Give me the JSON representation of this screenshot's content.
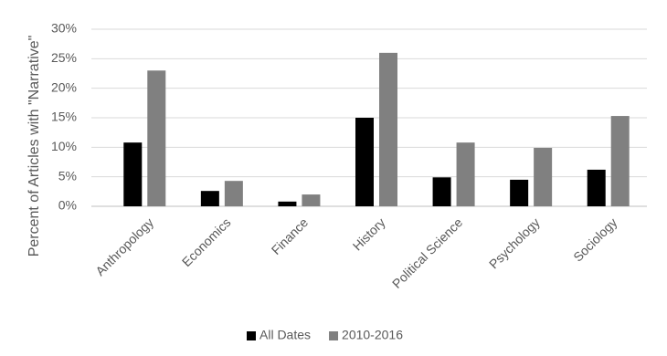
{
  "chart_data": {
    "type": "bar",
    "y_label": "Percent of Articles with \"Narrative\"",
    "categories": [
      "Anthropology",
      "Economics",
      "Finance",
      "History",
      "Political Science",
      "Psychology",
      "Sociology"
    ],
    "series": [
      {
        "name": "All Dates",
        "color": "#000000",
        "values": [
          10.8,
          2.6,
          0.8,
          15.0,
          4.9,
          4.5,
          6.2
        ]
      },
      {
        "name": "2010-2016",
        "color": "#808080",
        "values": [
          23.0,
          4.3,
          2.0,
          26.0,
          10.8,
          9.9,
          15.3
        ]
      }
    ],
    "ylim": [
      0,
      30
    ],
    "yticks": [
      {
        "value": 0,
        "label": "0%"
      },
      {
        "value": 5,
        "label": "5%"
      },
      {
        "value": 10,
        "label": "10%"
      },
      {
        "value": 15,
        "label": "15%"
      },
      {
        "value": 20,
        "label": "20%"
      },
      {
        "value": 25,
        "label": "25%"
      },
      {
        "value": 30,
        "label": "30%"
      }
    ],
    "grid": true,
    "legend": "bottom"
  }
}
